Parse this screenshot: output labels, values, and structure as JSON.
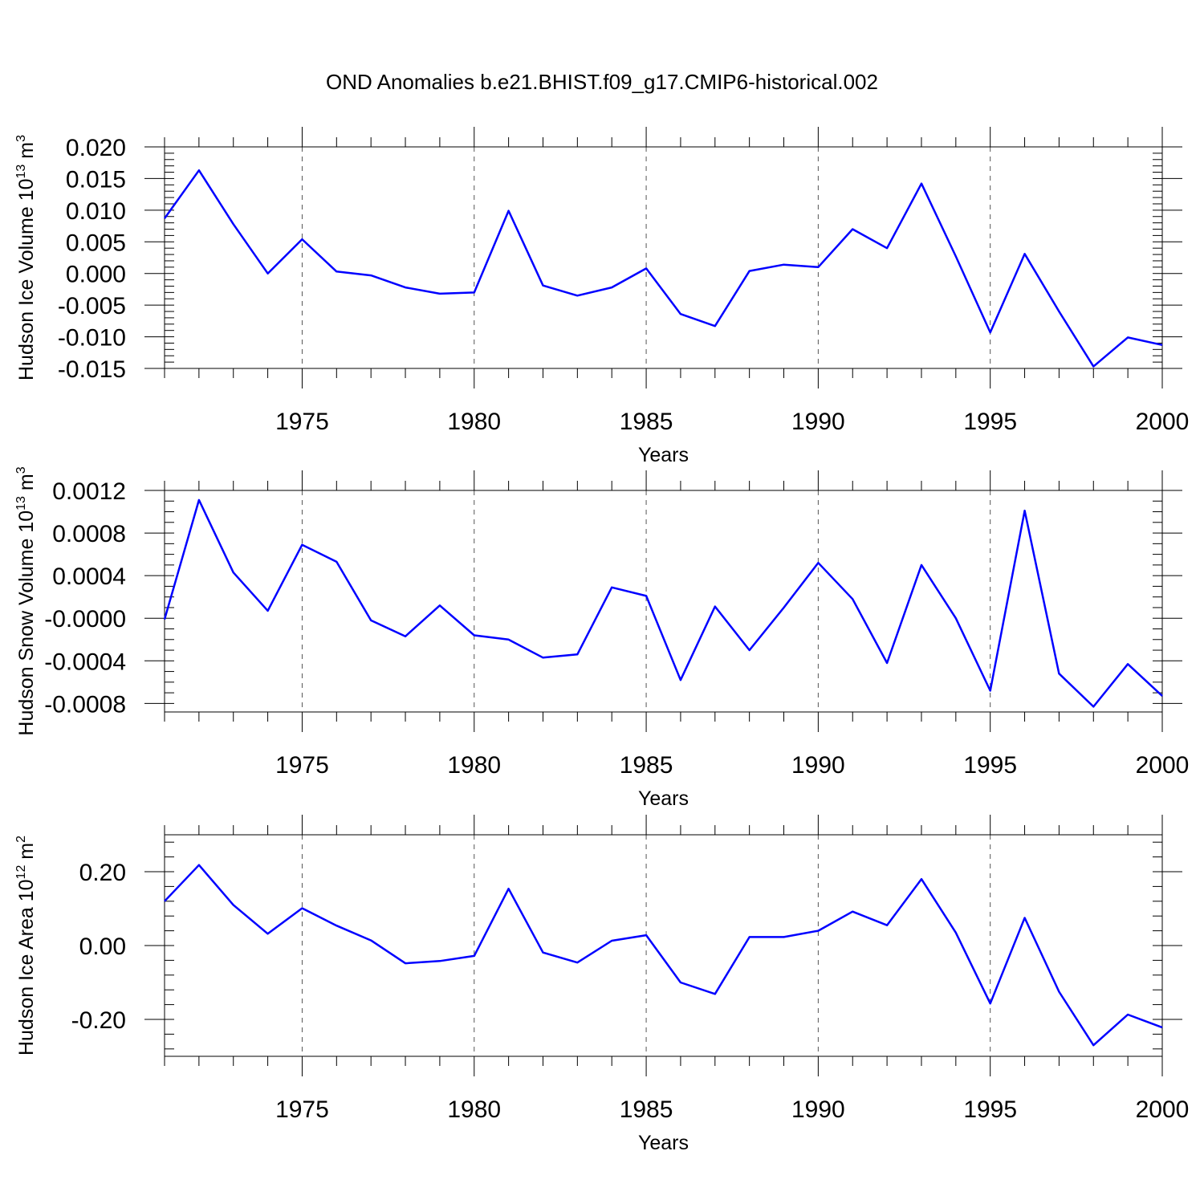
{
  "title": "OND Anomalies b.e21.BHIST.f09_g17.CMIP6-historical.002",
  "colors": {
    "line": "#0000ff",
    "axis": "#000000",
    "grid": "#555555"
  },
  "chart_data": [
    {
      "type": "line",
      "ylabel": "Hudson Ice Volume 10",
      "ylabel_exp": "13",
      "ylabel_unit": " m",
      "ylabel_unit_exp": "3",
      "xlabel": "Years",
      "xlim": [
        1971,
        2000
      ],
      "ylim": [
        -0.015,
        0.02
      ],
      "x_ticks": [
        1975,
        1980,
        1985,
        1990,
        1995,
        2000
      ],
      "y_ticks": [
        -0.015,
        -0.01,
        -0.005,
        0.0,
        0.005,
        0.01,
        0.015,
        0.02
      ],
      "y_tick_labels": [
        "-0.015",
        "-0.010",
        "-0.005",
        "0.000",
        "0.005",
        "0.010",
        "0.015",
        "0.020"
      ],
      "y_minor_step": 0.001,
      "grid": "vertical dashed at major x ticks",
      "x": [
        1971,
        1972,
        1973,
        1974,
        1975,
        1976,
        1977,
        1978,
        1979,
        1980,
        1981,
        1982,
        1983,
        1984,
        1985,
        1986,
        1987,
        1988,
        1989,
        1990,
        1991,
        1992,
        1993,
        1994,
        1995,
        1996,
        1997,
        1998,
        1999,
        2000
      ],
      "values": [
        0.0087,
        0.0163,
        0.0078,
        0.0,
        0.0054,
        0.0003,
        -0.0003,
        -0.0022,
        -0.0032,
        -0.003,
        0.0099,
        -0.0019,
        -0.0035,
        -0.0022,
        0.0008,
        -0.0064,
        -0.0083,
        0.0004,
        0.0014,
        0.001,
        0.007,
        0.004,
        0.0142,
        0.0027,
        -0.0093,
        0.0031,
        -0.006,
        -0.0147,
        -0.0101,
        -0.0113
      ]
    },
    {
      "type": "line",
      "ylabel": "Hudson Snow Volume 10",
      "ylabel_exp": "13",
      "ylabel_unit": " m",
      "ylabel_unit_exp": "3",
      "xlabel": "Years",
      "xlim": [
        1971,
        2000
      ],
      "ylim": [
        -0.00088,
        0.0012
      ],
      "x_ticks": [
        1975,
        1980,
        1985,
        1990,
        1995,
        2000
      ],
      "y_ticks": [
        -0.0008,
        -0.0004,
        0.0,
        0.0004,
        0.0008,
        0.0012
      ],
      "y_tick_labels": [
        "-0.0008",
        "-0.0004",
        "-0.0000",
        "0.0004",
        "0.0008",
        "0.0012"
      ],
      "y_minor_step": 0.0001,
      "grid": "vertical dashed at major x ticks",
      "x": [
        1971,
        1972,
        1973,
        1974,
        1975,
        1976,
        1977,
        1978,
        1979,
        1980,
        1981,
        1982,
        1983,
        1984,
        1985,
        1986,
        1987,
        1988,
        1989,
        1990,
        1991,
        1992,
        1993,
        1994,
        1995,
        1996,
        1997,
        1998,
        1999,
        2000
      ],
      "values": [
        -1e-05,
        0.00111,
        0.00043,
        7e-05,
        0.00069,
        0.00053,
        -2e-05,
        -0.00017,
        0.00012,
        -0.00016,
        -0.0002,
        -0.00037,
        -0.00034,
        0.00029,
        0.00021,
        -0.00058,
        0.00011,
        -0.0003,
        0.0001,
        0.00052,
        0.00018,
        -0.00042,
        0.0005,
        0.0,
        -0.00068,
        0.00101,
        -0.00052,
        -0.00083,
        -0.00043,
        -0.00073
      ]
    },
    {
      "type": "line",
      "ylabel": "Hudson Ice Area 10",
      "ylabel_exp": "12",
      "ylabel_unit": " m",
      "ylabel_unit_exp": "2",
      "xlabel": "Years",
      "xlim": [
        1971,
        2000
      ],
      "ylim": [
        -0.3,
        0.3
      ],
      "x_ticks": [
        1975,
        1980,
        1985,
        1990,
        1995,
        2000
      ],
      "y_ticks": [
        -0.2,
        0.0,
        0.2
      ],
      "y_tick_labels": [
        "-0.20",
        "0.00",
        "0.20"
      ],
      "y_minor_step": 0.04,
      "grid": "vertical dashed at major x ticks",
      "x": [
        1971,
        1972,
        1973,
        1974,
        1975,
        1976,
        1977,
        1978,
        1979,
        1980,
        1981,
        1982,
        1983,
        1984,
        1985,
        1986,
        1987,
        1988,
        1989,
        1990,
        1991,
        1992,
        1993,
        1994,
        1995,
        1996,
        1997,
        1998,
        1999,
        2000
      ],
      "values": [
        0.12,
        0.218,
        0.11,
        0.032,
        0.101,
        0.054,
        0.014,
        -0.048,
        -0.042,
        -0.028,
        0.154,
        -0.019,
        -0.046,
        0.013,
        0.028,
        -0.1,
        -0.131,
        0.023,
        0.023,
        0.04,
        0.092,
        0.055,
        0.18,
        0.035,
        -0.157,
        0.075,
        -0.125,
        -0.27,
        -0.187,
        -0.222
      ]
    }
  ]
}
